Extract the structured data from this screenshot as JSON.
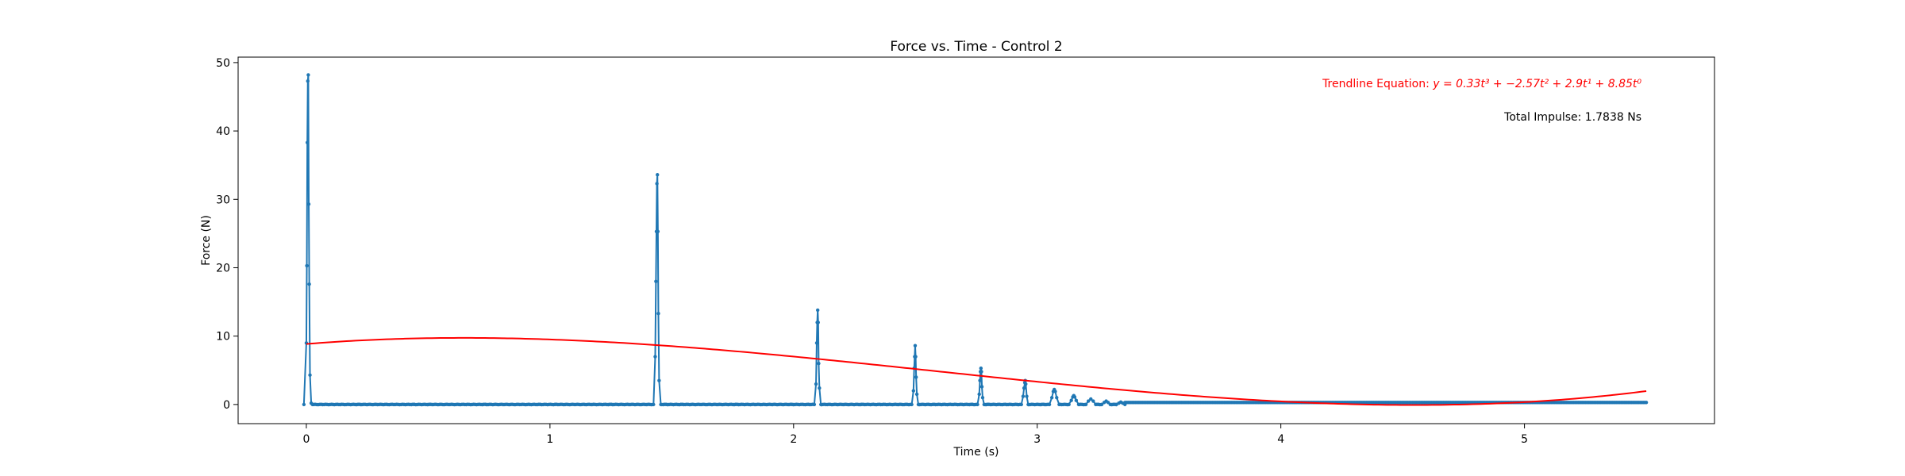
{
  "chart_data": {
    "type": "line",
    "title": "Force vs. Time - Control 2",
    "xlabel": "Time (s)",
    "ylabel": "Force (N)",
    "xlim": [
      -0.28,
      5.78
    ],
    "ylim": [
      -2.8,
      50.8
    ],
    "xticks": [
      0,
      1,
      2,
      3,
      4,
      5
    ],
    "xtick_labels": [
      "0",
      "1",
      "2",
      "3",
      "4",
      "5"
    ],
    "yticks": [
      0,
      10,
      20,
      30,
      40,
      50
    ],
    "ytick_labels": [
      "0",
      "10",
      "20",
      "30",
      "40",
      "50"
    ],
    "grid": false,
    "series": [
      {
        "name": "",
        "color": "#1f77b4",
        "marker": "dot",
        "baseline": {
          "x_start": 0.03,
          "x_end": 5.5,
          "y_start": 0.0,
          "y_end": 0.3
        },
        "peaks": [
          {
            "t": 0.0,
            "x": [
              -0.01,
              0.0,
              0.002,
              0.004,
              0.006,
              0.008,
              0.01,
              0.012,
              0.015,
              0.02,
              0.025
            ],
            "y": [
              0.0,
              9.0,
              20.3,
              38.3,
              47.3,
              48.2,
              29.3,
              17.6,
              4.3,
              0.2,
              0.0
            ]
          },
          {
            "t": 1.44,
            "x": [
              1.425,
              1.432,
              1.435,
              1.437,
              1.439,
              1.441,
              1.443,
              1.445,
              1.448,
              1.455
            ],
            "y": [
              0.0,
              7.0,
              18.0,
              25.3,
              32.3,
              33.6,
              25.3,
              13.3,
              3.5,
              0.0
            ]
          },
          {
            "t": 2.1,
            "x": [
              2.085,
              2.092,
              2.095,
              2.097,
              2.099,
              2.101,
              2.103,
              2.106,
              2.112
            ],
            "y": [
              0.0,
              3.0,
              9.0,
              12.0,
              13.8,
              12.0,
              6.0,
              2.4,
              0.0
            ]
          },
          {
            "t": 2.5,
            "x": [
              2.485,
              2.492,
              2.495,
              2.497,
              2.499,
              2.501,
              2.503,
              2.506,
              2.512
            ],
            "y": [
              0.0,
              2.0,
              5.3,
              7.0,
              8.6,
              7.0,
              4.0,
              1.5,
              0.0
            ]
          },
          {
            "t": 2.77,
            "x": [
              2.755,
              2.762,
              2.765,
              2.767,
              2.769,
              2.771,
              2.773,
              2.776,
              2.782
            ],
            "y": [
              0.0,
              1.5,
              3.5,
              4.8,
              5.3,
              4.8,
              2.6,
              1.0,
              0.0
            ]
          },
          {
            "t": 2.95,
            "x": [
              2.935,
              2.942,
              2.946,
              2.949,
              2.951,
              2.953,
              2.957,
              2.963
            ],
            "y": [
              0.0,
              1.2,
              2.4,
              3.2,
              3.5,
              3.0,
              1.2,
              0.0
            ]
          },
          {
            "t": 3.07,
            "x": [
              3.05,
              3.06,
              3.066,
              3.07,
              3.074,
              3.08,
              3.09
            ],
            "y": [
              0.0,
              1.0,
              1.9,
              2.2,
              1.9,
              1.0,
              0.0
            ]
          },
          {
            "t": 3.15,
            "x": [
              3.13,
              3.14,
              3.146,
              3.15,
              3.154,
              3.16,
              3.17
            ],
            "y": [
              0.0,
              0.6,
              1.1,
              1.3,
              1.1,
              0.6,
              0.0
            ]
          },
          {
            "t": 3.22,
            "x": [
              3.2,
              3.21,
              3.22,
              3.23,
              3.24
            ],
            "y": [
              0.0,
              0.5,
              0.8,
              0.5,
              0.0
            ]
          },
          {
            "t": 3.28,
            "x": [
              3.265,
              3.275,
              3.283,
              3.291,
              3.3
            ],
            "y": [
              0.0,
              0.3,
              0.5,
              0.3,
              0.0
            ]
          },
          {
            "t": 3.34,
            "x": [
              3.325,
              3.335,
              3.343,
              3.351,
              3.36
            ],
            "y": [
              0.0,
              0.2,
              0.35,
              0.2,
              0.0
            ]
          }
        ]
      },
      {
        "name": "",
        "color": "#ff0000",
        "type": "polynomial-trendline",
        "coefficients": [
          0.33,
          -2.57,
          2.9,
          8.85
        ],
        "x_range": [
          0,
          5.5
        ]
      }
    ],
    "annotations": [
      {
        "id": "equation",
        "prefix": "Trendline Equation: ",
        "text": "y = 0.33t³ + −2.57t² + 2.9t¹ + 8.85t⁰",
        "color": "#ff0000"
      },
      {
        "id": "impulse",
        "text": "Total Impulse: 1.7838 Ns",
        "color": "#000000"
      }
    ]
  }
}
